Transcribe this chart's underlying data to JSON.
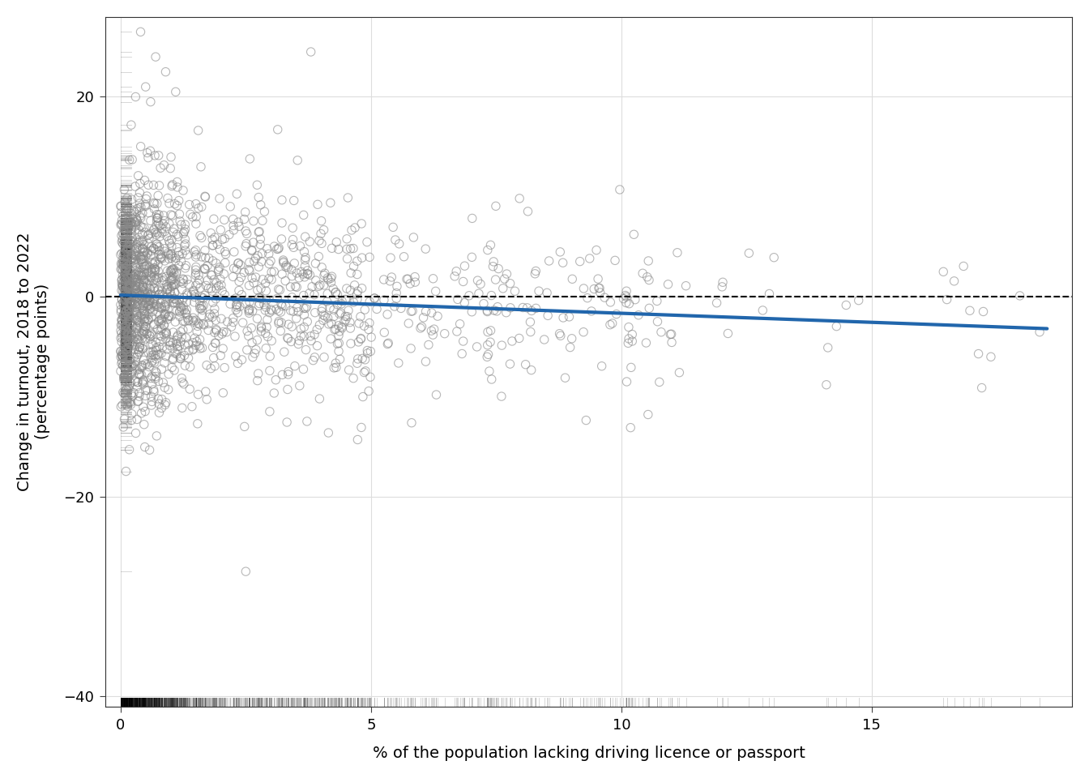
{
  "title": "",
  "xlabel": "% of the population lacking driving licence or passport",
  "ylabel": "Change in turnout, 2018 to 2022\n(percentage points)",
  "xlim": [
    -0.3,
    19
  ],
  "ylim": [
    -41,
    28
  ],
  "xlim_plot": [
    0,
    19
  ],
  "xticks": [
    0,
    5,
    10,
    15
  ],
  "yticks": [
    -40,
    -20,
    0,
    20
  ],
  "scatter_edge_color": "#888888",
  "scatter_size": 55,
  "scatter_alpha": 0.6,
  "scatter_lw": 0.8,
  "regression_color": "#2166ac",
  "regression_lw": 3.0,
  "regression_x0": 0.0,
  "regression_y0": 0.15,
  "regression_x1": 18.5,
  "regression_y1": -3.2,
  "hline_y": 0,
  "hline_color": "#000000",
  "hline_lw": 1.5,
  "hline_ls": "--",
  "rug_color": "#000000",
  "background_color": "#ffffff",
  "panel_color": "#ffffff",
  "grid_color": "#dddddd",
  "n_points": 1700,
  "seed": 99
}
